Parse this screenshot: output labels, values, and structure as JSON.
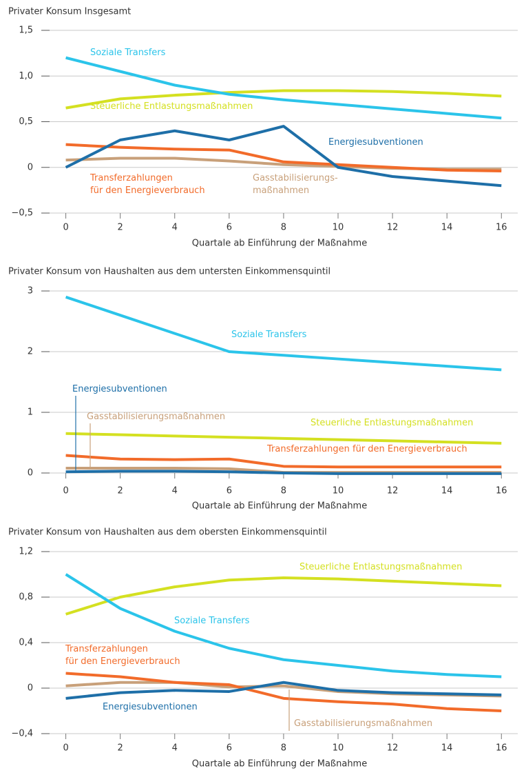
{
  "chart_data": [
    {
      "type": "line",
      "title": "Privater Konsum Insgesamt",
      "x_label": "Quartale ab Einführung der Maßnahme",
      "x": [
        0,
        2,
        4,
        6,
        8,
        10,
        12,
        14,
        16
      ],
      "xlim": [
        -0.9,
        16.6
      ],
      "xticks": [
        0,
        2,
        4,
        6,
        8,
        10,
        12,
        14,
        16
      ],
      "ylim": [
        -0.5,
        1.5
      ],
      "yticks": [
        {
          "value": -0.5,
          "label": "−0,5"
        },
        0,
        {
          "value": 0.5,
          "label": "0,5"
        },
        {
          "value": 1.0,
          "label": "1,0"
        },
        {
          "value": 1.5,
          "label": "1,5"
        }
      ],
      "grid": true,
      "series": [
        {
          "name": "Soziale Transfers",
          "color": "#2bc4ea",
          "values": [
            1.2,
            1.05,
            0.9,
            0.8,
            0.74,
            0.69,
            0.64,
            0.59,
            0.54
          ]
        },
        {
          "name": "Steuerliche Entlastungsmaßnahmen",
          "color": "#d4e021",
          "values": [
            0.65,
            0.75,
            0.79,
            0.82,
            0.84,
            0.84,
            0.83,
            0.81,
            0.78
          ]
        },
        {
          "name": "Energiesubventionen",
          "color": "#1e6fa8",
          "values": [
            0,
            0.3,
            0.4,
            0.3,
            0.45,
            0.0,
            -0.1,
            -0.15,
            -0.2
          ]
        },
        {
          "name": "Transferzahlungen\nfür den Energieverbrauch",
          "color": "#f26b2a",
          "values": [
            0.25,
            0.22,
            0.2,
            0.19,
            0.06,
            0.03,
            0,
            -0.03,
            -0.04
          ]
        },
        {
          "name": "Gasstabilisierungs-\nmaßnahmen",
          "color": "#c8a07a",
          "values": [
            0.08,
            0.1,
            0.1,
            0.07,
            0.03,
            0.01,
            -0.01,
            -0.02,
            -0.02
          ]
        }
      ]
    },
    {
      "type": "line",
      "title": "Privater Konsum von Haushalten aus dem untersten Einkommensquintil",
      "x_label": "Quartale ab Einführung der Maßnahme",
      "x": [
        0,
        2,
        4,
        6,
        8,
        10,
        12,
        14,
        16
      ],
      "xlim": [
        -0.9,
        16.6
      ],
      "xticks": [
        0,
        2,
        4,
        6,
        8,
        10,
        12,
        14,
        16
      ],
      "ylim": [
        0,
        3
      ],
      "yticks": [
        0,
        1,
        2,
        3
      ],
      "grid": true,
      "series": [
        {
          "name": "Soziale Transfers",
          "color": "#2bc4ea",
          "values": [
            2.9,
            2.6,
            2.3,
            2.0,
            1.94,
            1.88,
            1.82,
            1.76,
            1.7
          ]
        },
        {
          "name": "Steuerliche Entlastungsmaßnahmen",
          "color": "#d4e021",
          "values": [
            0.65,
            0.63,
            0.61,
            0.59,
            0.57,
            0.55,
            0.53,
            0.51,
            0.49
          ]
        },
        {
          "name": "Energiesubventionen",
          "color": "#1e6fa8",
          "values": [
            0.02,
            0.03,
            0.03,
            0.02,
            0,
            -0.01,
            -0.01,
            -0.01,
            -0.01
          ]
        },
        {
          "name": "Transferzahlungen für den Energieverbrauch",
          "color": "#f26b2a",
          "values": [
            0.29,
            0.23,
            0.22,
            0.23,
            0.11,
            0.1,
            0.1,
            0.1,
            0.1
          ]
        },
        {
          "name": "Gasstabilisierungsmaßnahmen",
          "color": "#c8a07a",
          "values": [
            0.08,
            0.08,
            0.08,
            0.07,
            0.01,
            0.01,
            0.01,
            0.01,
            0.01
          ]
        }
      ]
    },
    {
      "type": "line",
      "title": "Privater Konsum von Haushalten aus dem obersten Einkommensquintil",
      "x_label": "Quartale ab Einführung der Maßnahme",
      "x": [
        0,
        2,
        4,
        6,
        8,
        10,
        12,
        14,
        16
      ],
      "xlim": [
        -0.9,
        16.6
      ],
      "xticks": [
        0,
        2,
        4,
        6,
        8,
        10,
        12,
        14,
        16
      ],
      "ylim": [
        -0.4,
        1.2
      ],
      "yticks": [
        {
          "value": -0.4,
          "label": "−0,4"
        },
        0,
        {
          "value": 0.4,
          "label": "0,4"
        },
        {
          "value": 0.8,
          "label": "0,8"
        },
        {
          "value": 1.2,
          "label": "1,2"
        }
      ],
      "grid": true,
      "series": [
        {
          "name": "Soziale Transfers",
          "color": "#2bc4ea",
          "values": [
            1.0,
            0.7,
            0.5,
            0.35,
            0.25,
            0.2,
            0.15,
            0.12,
            0.1
          ]
        },
        {
          "name": "Steuerliche Entlastungsmaßnahmen",
          "color": "#d4e021",
          "values": [
            0.65,
            0.8,
            0.89,
            0.95,
            0.97,
            0.96,
            0.94,
            0.92,
            0.9
          ]
        },
        {
          "name": "Energiesubventionen",
          "color": "#1e6fa8",
          "values": [
            -0.09,
            -0.04,
            -0.02,
            -0.03,
            0.05,
            -0.02,
            -0.04,
            -0.05,
            -0.06
          ]
        },
        {
          "name": "Transferzahlungen\nfür den Energieverbrauch",
          "color": "#f26b2a",
          "values": [
            0.13,
            0.1,
            0.05,
            0.03,
            -0.09,
            -0.12,
            -0.14,
            -0.18,
            -0.2
          ]
        },
        {
          "name": "Gasstabilisierungsmaßnahmen",
          "color": "#c8a07a",
          "values": [
            0.02,
            0.05,
            0.05,
            0.01,
            0.02,
            -0.03,
            -0.05,
            -0.06,
            -0.07
          ]
        }
      ]
    }
  ]
}
